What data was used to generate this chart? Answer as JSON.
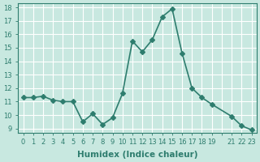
{
  "x": [
    0,
    1,
    2,
    3,
    4,
    5,
    6,
    7,
    8,
    9,
    10,
    11,
    12,
    13,
    14,
    15,
    16,
    17,
    18,
    19,
    21,
    22,
    23
  ],
  "y": [
    11.3,
    11.3,
    11.4,
    11.1,
    11.0,
    11.0,
    9.5,
    10.1,
    9.3,
    9.8,
    11.6,
    15.5,
    14.7,
    15.6,
    17.3,
    17.9,
    14.6,
    12.0,
    11.3,
    10.8,
    9.9,
    9.2,
    8.9
  ],
  "line_color": "#2e7d6e",
  "marker": "D",
  "marker_size": 3,
  "linewidth": 1.2,
  "bg_color": "#c8e8e0",
  "grid_color": "#ffffff",
  "xlabel": "Humidex (Indice chaleur)",
  "ylim_min": 9,
  "ylim_max": 18,
  "xlim_min": -0.5,
  "xlim_max": 23.5,
  "yticks": [
    9,
    10,
    11,
    12,
    13,
    14,
    15,
    16,
    17,
    18
  ],
  "xticks": [
    0,
    1,
    2,
    3,
    4,
    5,
    6,
    7,
    8,
    9,
    10,
    11,
    12,
    13,
    14,
    15,
    16,
    17,
    18,
    19,
    20,
    21,
    22,
    23
  ],
  "xtick_labels": [
    "0",
    "1",
    "2",
    "3",
    "4",
    "5",
    "6",
    "7",
    "8",
    "9",
    "10",
    "11",
    "12",
    "13",
    "14",
    "15",
    "16",
    "17",
    "18",
    "19",
    "",
    "21",
    "22",
    "23"
  ],
  "tick_color": "#2e7d6e",
  "label_fontsize": 7.5,
  "tick_fontsize": 6
}
